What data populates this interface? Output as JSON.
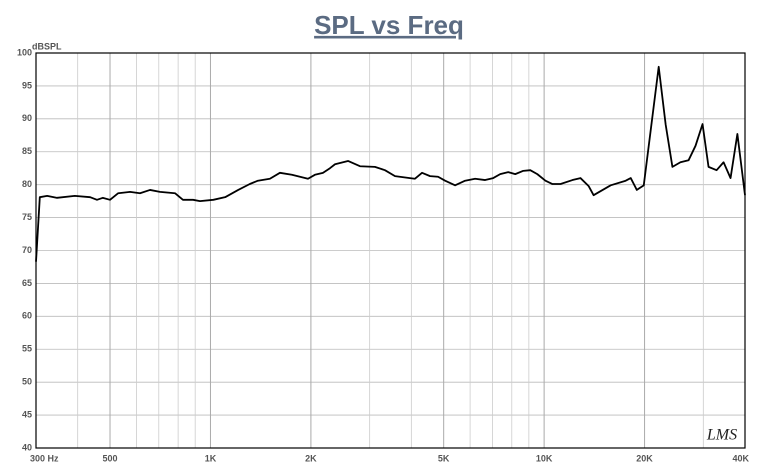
{
  "chart_data": {
    "type": "line",
    "title": "SPL vs Freq",
    "ylabel": "dBSPL",
    "watermark": "LMS",
    "xscale": "log",
    "grid": true,
    "color": "#000000",
    "xlim": [
      300,
      40000
    ],
    "ylim": [
      40,
      100
    ],
    "yticks": [
      40,
      45,
      50,
      55,
      60,
      65,
      70,
      75,
      80,
      85,
      90,
      95,
      100
    ],
    "xticks": [
      {
        "value": 300,
        "label": "300 Hz"
      },
      500,
      {
        "value": 1000,
        "label": "1K"
      },
      {
        "value": 2000,
        "label": "2K"
      },
      {
        "value": 5000,
        "label": "5K"
      },
      {
        "value": 10000,
        "label": "10K"
      },
      {
        "value": 20000,
        "label": "20K"
      },
      {
        "value": 40000,
        "label": "40K"
      }
    ],
    "xminorticks": [
      400,
      600,
      700,
      800,
      900,
      3000,
      4000,
      6000,
      7000,
      8000,
      9000,
      30000
    ],
    "x": [
      300,
      308,
      324,
      347,
      392,
      436,
      457,
      476,
      500,
      529,
      574,
      615,
      659,
      706,
      783,
      827,
      887,
      930,
      1020,
      1107,
      1211,
      1312,
      1387,
      1507,
      1615,
      1754,
      1960,
      2056,
      2173,
      2281,
      2362,
      2584,
      2806,
      3111,
      3334,
      3573,
      3962,
      4102,
      4306,
      4551,
      4810,
      5049,
      5410,
      5797,
      6212,
      6656,
      7037,
      7385,
      7806,
      8193,
      8660,
      9090,
      9540,
      10090,
      10590,
      11200,
      12160,
      12850,
      13590,
      14070,
      15830,
      17560,
      18180,
      18960,
      19890,
      22050,
      23140,
      24240,
      25620,
      27090,
      28430,
      29840,
      31100,
      32880,
      34500,
      36200,
      37950,
      40000
    ],
    "values": [
      68.3,
      78.1,
      78.3,
      78.0,
      78.3,
      78.1,
      77.7,
      78.0,
      77.7,
      78.7,
      78.9,
      78.7,
      79.2,
      78.9,
      78.7,
      77.7,
      77.7,
      77.5,
      77.7,
      78.1,
      79.2,
      80.1,
      80.6,
      80.9,
      81.8,
      81.5,
      80.9,
      81.5,
      81.8,
      82.5,
      83.1,
      83.6,
      82.8,
      82.7,
      82.2,
      81.3,
      81.0,
      80.9,
      81.8,
      81.3,
      81.2,
      80.6,
      79.9,
      80.6,
      80.9,
      80.7,
      81.0,
      81.6,
      81.9,
      81.6,
      82.1,
      82.2,
      81.6,
      80.6,
      80.1,
      80.1,
      80.7,
      81.0,
      79.8,
      78.4,
      79.9,
      80.6,
      81.0,
      79.2,
      79.9,
      97.9,
      89.1,
      82.7,
      83.4,
      83.7,
      85.9,
      89.2,
      82.7,
      82.2,
      83.4,
      81.0,
      87.7,
      78.4
    ]
  }
}
